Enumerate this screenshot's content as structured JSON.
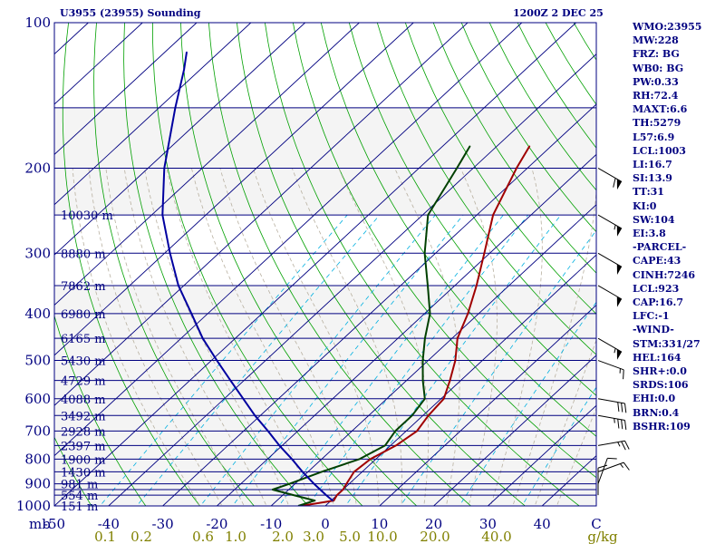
{
  "header": {
    "station": "U3955 (23955) Sounding",
    "valid_time": "1200Z  2 DEC 25"
  },
  "indices": [
    "WMO:23955",
    "MW:228",
    "FRZ: BG",
    "WB0: BG",
    "PW:0.33",
    "RH:72.4",
    "MAXT:6.6",
    "TH:5279",
    "L57:6.9",
    "LCL:1003",
    "LI:16.7",
    "SI:13.9",
    "TT:31",
    "KI:0",
    "SW:104",
    "EI:3.8",
    "-PARCEL-",
    "CAPE:43",
    "CINH:7246",
    "LCL:923",
    "CAP:16.7",
    "LFC:-1",
    "-WIND-",
    "STM:331/27",
    "HEL:164",
    "SHR+:0.0",
    "SRDS:106",
    "EHI:0.0",
    "BRN:0.4",
    "BSHR:109"
  ],
  "colors": {
    "frame": "#000080",
    "isobar": "#000080",
    "isotherm": "#000080",
    "dry_adiabat": "#00a000",
    "moist_adiabat": "#b8b0a0",
    "mixing_ratio": "#00b0e0",
    "temperature": "#a00000",
    "dewpoint": "#004000",
    "parcel": "#0000a0",
    "shade": "#f4f4f4",
    "mixing_label": "#808000"
  },
  "chart_data": {
    "type": "skew-t",
    "pressure_unit": "mb",
    "temperature_unit": "C",
    "pressure_range": [
      1000,
      100
    ],
    "temperature_range": [
      -50,
      50
    ],
    "pressure_ticks": [
      100,
      200,
      300,
      400,
      500,
      600,
      700,
      800,
      900,
      1000
    ],
    "isobar_levels": [
      100,
      150,
      200,
      250,
      300,
      350,
      400,
      450,
      500,
      550,
      600,
      650,
      700,
      750,
      800,
      850,
      900,
      925,
      950,
      1000
    ],
    "temperature_ticks": [
      -50,
      -40,
      -30,
      -20,
      -10,
      0,
      10,
      20,
      30,
      40,
      50
    ],
    "temperature_tick_labels": [
      "-50",
      "-40",
      "-30",
      "-20",
      "-10",
      "0",
      "10",
      "20",
      "30",
      "40",
      "C"
    ],
    "x_unit_label": "mb",
    "mixing_ratio_labels": [
      "0.1",
      "0.2",
      "0.6",
      "1.0",
      "2.0",
      "3.0",
      "5.0",
      "10.0",
      "20.0",
      "40.0"
    ],
    "mixing_ratio_unit": "g/kg",
    "height_labels": [
      {
        "p": 250,
        "label": "10030 m"
      },
      {
        "p": 300,
        "label": "8880 m"
      },
      {
        "p": 350,
        "label": "7862 m"
      },
      {
        "p": 400,
        "label": "6980 m"
      },
      {
        "p": 450,
        "label": "6165 m"
      },
      {
        "p": 500,
        "label": "5430 m"
      },
      {
        "p": 550,
        "label": "4729 m"
      },
      {
        "p": 600,
        "label": "4088 m"
      },
      {
        "p": 650,
        "label": "3492 m"
      },
      {
        "p": 700,
        "label": "2928 m"
      },
      {
        "p": 750,
        "label": "2397 m"
      },
      {
        "p": 800,
        "label": "1900 m"
      },
      {
        "p": 850,
        "label": "1430 m"
      },
      {
        "p": 900,
        "label": "981 m"
      },
      {
        "p": 950,
        "label": "554 m"
      },
      {
        "p": 1000,
        "label": "151 m"
      }
    ],
    "series": [
      {
        "name": "temperature",
        "points": [
          [
            1000,
            -4.5
          ],
          [
            975,
            0.5
          ],
          [
            950,
            0
          ],
          [
            925,
            0
          ],
          [
            900,
            -0.5
          ],
          [
            850,
            -1.5
          ],
          [
            800,
            -1
          ],
          [
            750,
            1
          ],
          [
            700,
            2
          ],
          [
            650,
            1
          ],
          [
            600,
            0.5
          ],
          [
            550,
            -2
          ],
          [
            500,
            -5
          ],
          [
            450,
            -9
          ],
          [
            400,
            -12
          ],
          [
            350,
            -16
          ],
          [
            300,
            -21
          ],
          [
            250,
            -27
          ],
          [
            200,
            -32
          ],
          [
            180,
            -34
          ]
        ]
      },
      {
        "name": "dewpoint",
        "points": [
          [
            1000,
            -5
          ],
          [
            975,
            -3
          ],
          [
            950,
            -8
          ],
          [
            925,
            -13
          ],
          [
            900,
            -11
          ],
          [
            850,
            -7.5
          ],
          [
            800,
            -3
          ],
          [
            750,
            -1
          ],
          [
            700,
            -2
          ],
          [
            650,
            -2
          ],
          [
            600,
            -3
          ],
          [
            550,
            -7
          ],
          [
            500,
            -11
          ],
          [
            450,
            -15
          ],
          [
            400,
            -19
          ],
          [
            350,
            -25
          ],
          [
            300,
            -32
          ],
          [
            250,
            -39
          ],
          [
            200,
            -43
          ],
          [
            180,
            -45
          ]
        ]
      },
      {
        "name": "parcel",
        "points": [
          [
            975,
            0.3
          ],
          [
            950,
            -2
          ],
          [
            900,
            -6.5
          ],
          [
            850,
            -11
          ],
          [
            800,
            -15.5
          ],
          [
            750,
            -20.5
          ],
          [
            700,
            -25.5
          ],
          [
            650,
            -31
          ],
          [
            600,
            -36.5
          ],
          [
            550,
            -42.5
          ],
          [
            500,
            -49
          ],
          [
            450,
            -56
          ],
          [
            400,
            -63
          ],
          [
            350,
            -71
          ],
          [
            300,
            -79
          ],
          [
            250,
            -88
          ],
          [
            200,
            -97
          ],
          [
            150,
            -107
          ],
          [
            125,
            -113
          ],
          [
            115,
            -116
          ]
        ]
      }
    ],
    "wind_barbs": [
      {
        "p": 200,
        "dir": 300,
        "speed": 60
      },
      {
        "p": 250,
        "dir": 300,
        "speed": 55
      },
      {
        "p": 300,
        "dir": 300,
        "speed": 50
      },
      {
        "p": 350,
        "dir": 300,
        "speed": 50
      },
      {
        "p": 450,
        "dir": 300,
        "speed": 55
      },
      {
        "p": 500,
        "dir": 290,
        "speed": 15
      },
      {
        "p": 600,
        "dir": 280,
        "speed": 30
      },
      {
        "p": 650,
        "dir": 280,
        "speed": 35
      },
      {
        "p": 750,
        "dir": 260,
        "speed": 25
      },
      {
        "p": 850,
        "dir": 250,
        "speed": 15
      },
      {
        "p": 900,
        "dir": 200,
        "speed": 10
      },
      {
        "p": 950,
        "dir": 180,
        "speed": 10
      }
    ]
  }
}
